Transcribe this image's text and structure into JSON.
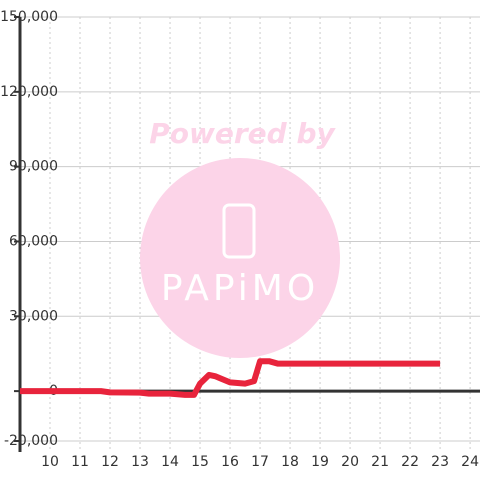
{
  "chart_data": {
    "type": "line",
    "x": [
      9,
      11.7,
      12,
      13,
      13.3,
      14,
      14.5,
      14.8,
      15,
      15.3,
      15.5,
      16,
      16.5,
      16.8,
      17,
      17.3,
      17.6,
      18,
      19,
      20,
      21,
      22,
      23
    ],
    "series": [
      {
        "color": "#e8243c",
        "values": [
          0,
          0,
          -500,
          -600,
          -1000,
          -1000,
          -1500,
          -1500,
          3000,
          6500,
          6000,
          3500,
          3000,
          4000,
          12000,
          12000,
          11000,
          11000,
          11000,
          11000,
          11000,
          11000,
          11000
        ]
      }
    ],
    "xlim": [
      9,
      24.33
    ],
    "xticks": [
      10,
      11,
      12,
      13,
      14,
      15,
      16,
      17,
      18,
      19,
      20,
      21,
      22,
      23,
      24
    ],
    "ylim": [
      -20000,
      150000
    ],
    "yticks": [
      {
        "value": -20000,
        "label": "-20,000"
      },
      0,
      {
        "value": 30000,
        "label": "30,000"
      },
      {
        "value": 60000,
        "label": "60,000"
      },
      {
        "value": 90000,
        "label": "90,000"
      },
      {
        "value": 120000,
        "label": "120,000"
      },
      {
        "value": 150000,
        "label": "150,000"
      }
    ],
    "grid": true,
    "watermark": {
      "top": "Powered by",
      "bottom": "PAPiMO"
    }
  }
}
